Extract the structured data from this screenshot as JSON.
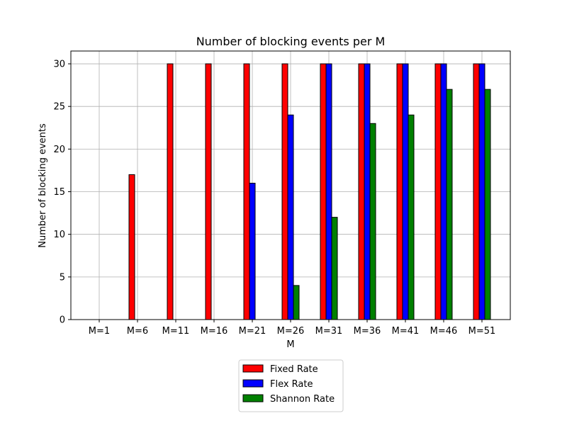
{
  "chart_data": {
    "type": "bar",
    "title": "Number of blocking events per M",
    "xlabel": "M",
    "ylabel": "Number of blocking events",
    "categories": [
      "M=1",
      "M=6",
      "M=11",
      "M=16",
      "M=21",
      "M=26",
      "M=31",
      "M=36",
      "M=41",
      "M=46",
      "M=51"
    ],
    "series": [
      {
        "name": "Fixed Rate",
        "color": "#ff0000",
        "values": [
          0,
          17,
          30,
          30,
          30,
          30,
          30,
          30,
          30,
          30,
          30
        ]
      },
      {
        "name": "Flex Rate",
        "color": "#0000ff",
        "values": [
          0,
          0,
          0,
          0,
          16,
          24,
          30,
          30,
          30,
          30,
          30
        ]
      },
      {
        "name": "Shannon Rate",
        "color": "#008000",
        "values": [
          0,
          0,
          0,
          0,
          0,
          4,
          12,
          23,
          24,
          27,
          27
        ]
      }
    ],
    "yticks": [
      0,
      5,
      10,
      15,
      20,
      25,
      30
    ],
    "ylim": [
      0,
      31.5
    ],
    "grid": true,
    "legend_position": "below-center"
  }
}
